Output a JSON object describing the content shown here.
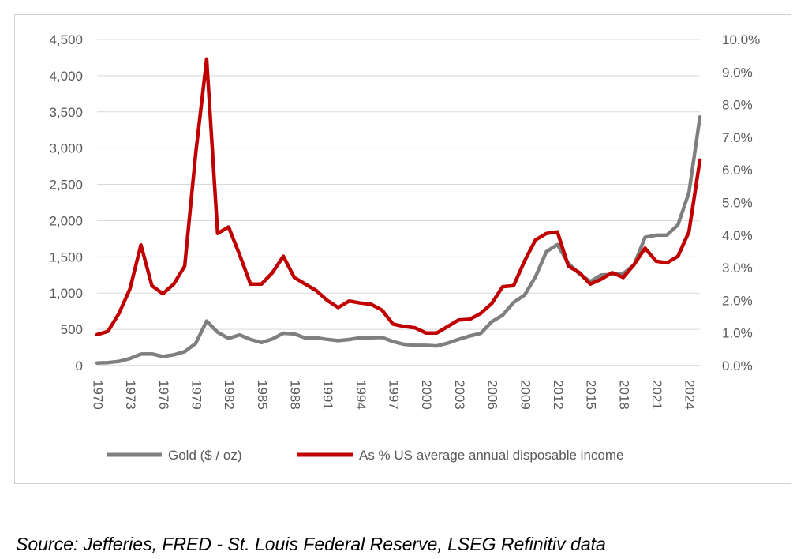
{
  "source_note": "Source: Jefferies, FRED - St. Louis Federal Reserve, LSEG Refinitiv data",
  "colors": {
    "gold": "#7f7f7f",
    "pct": "#c00000",
    "grid": "#d9d9d9",
    "text": "#595959"
  },
  "chart_data": {
    "type": "line",
    "title": "",
    "x": [
      1970,
      1971,
      1972,
      1973,
      1974,
      1975,
      1976,
      1977,
      1978,
      1979,
      1980,
      1981,
      1982,
      1983,
      1984,
      1985,
      1986,
      1987,
      1988,
      1989,
      1990,
      1991,
      1992,
      1993,
      1994,
      1995,
      1996,
      1997,
      1998,
      1999,
      2000,
      2001,
      2002,
      2003,
      2004,
      2005,
      2006,
      2007,
      2008,
      2009,
      2010,
      2011,
      2012,
      2013,
      2014,
      2015,
      2016,
      2017,
      2018,
      2019,
      2020,
      2021,
      2022,
      2023,
      2024,
      2025
    ],
    "x_tick_labels": [
      "1970",
      "1973",
      "1976",
      "1979",
      "1982",
      "1985",
      "1988",
      "1991",
      "1994",
      "1997",
      "2000",
      "2003",
      "2006",
      "2009",
      "2012",
      "2015",
      "2018",
      "2021",
      "2024"
    ],
    "y_left": {
      "min": 0,
      "max": 4500,
      "ticks": [
        "0",
        "500",
        "1,000",
        "1,500",
        "2,000",
        "2,500",
        "3,000",
        "3,500",
        "4,000",
        "4,500"
      ]
    },
    "y_right": {
      "min": 0,
      "max": 10,
      "ticks": [
        "0.0%",
        "1.0%",
        "2.0%",
        "3.0%",
        "4.0%",
        "5.0%",
        "6.0%",
        "7.0%",
        "8.0%",
        "9.0%",
        "10.0%"
      ]
    },
    "grid": true,
    "legend_position": "bottom",
    "series": [
      {
        "name": "Gold ($ / oz)",
        "axis": "left",
        "color": "#7f7f7f",
        "values": [
          36,
          41,
          58,
          97,
          159,
          161,
          125,
          148,
          193,
          306,
          615,
          460,
          376,
          424,
          361,
          317,
          368,
          447,
          437,
          381,
          383,
          362,
          344,
          360,
          384,
          384,
          388,
          331,
          294,
          279,
          279,
          271,
          310,
          363,
          409,
          445,
          604,
          695,
          872,
          972,
          1225,
          1572,
          1669,
          1411,
          1266,
          1160,
          1251,
          1257,
          1268,
          1393,
          1770,
          1799,
          1800,
          1943,
          2386,
          3430
        ]
      },
      {
        "name": "As % US average annual disposable income",
        "axis": "right",
        "color": "#c00000",
        "values": [
          0.95,
          1.05,
          1.6,
          2.35,
          3.7,
          2.45,
          2.2,
          2.5,
          3.05,
          6.5,
          9.4,
          4.05,
          4.25,
          3.4,
          2.5,
          2.5,
          2.85,
          3.35,
          2.7,
          2.5,
          2.3,
          2.0,
          1.78,
          1.98,
          1.92,
          1.88,
          1.7,
          1.27,
          1.2,
          1.16,
          1.0,
          1.0,
          1.2,
          1.4,
          1.42,
          1.6,
          1.9,
          2.42,
          2.45,
          3.2,
          3.85,
          4.05,
          4.1,
          3.05,
          2.85,
          2.5,
          2.65,
          2.85,
          2.7,
          3.1,
          3.6,
          3.2,
          3.15,
          3.35,
          4.1,
          6.3
        ]
      }
    ]
  }
}
